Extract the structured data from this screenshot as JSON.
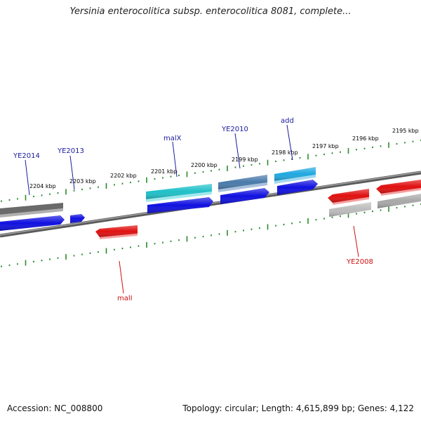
{
  "title": "Yersinia enterocolitica subsp. enterocolitica 8081, complete...",
  "footer": {
    "accession": "Accession: NC_008800",
    "summary": "Topology: circular; Length: 4,615,899 bp; Genes: 4,122"
  },
  "colors": {
    "backbone": "#7a7a7a",
    "tick": "#2a8a2a",
    "label_top": "#1a1aa0",
    "label_bottom": "#cc1111",
    "blue": "#1010e0",
    "gray": "#707070",
    "cyan": "#20c0c8",
    "steel": "#4a7aaa",
    "sky": "#20a8e0",
    "red": "#e01010",
    "lightgray": "#bcbcbc"
  },
  "scale_labels": [
    "2204 kbp",
    "2203 kbp",
    "2202 kbp",
    "2201 kbp",
    "2200 kbp",
    "2199 kbp",
    "2198 kbp",
    "2197 kbp",
    "2196 kbp",
    "2195 kbp"
  ],
  "top_gene_labels": [
    "YE2014",
    "YE2013",
    "malX",
    "YE2010",
    "add"
  ],
  "bottom_gene_labels": [
    "malI",
    "YE2008"
  ]
}
